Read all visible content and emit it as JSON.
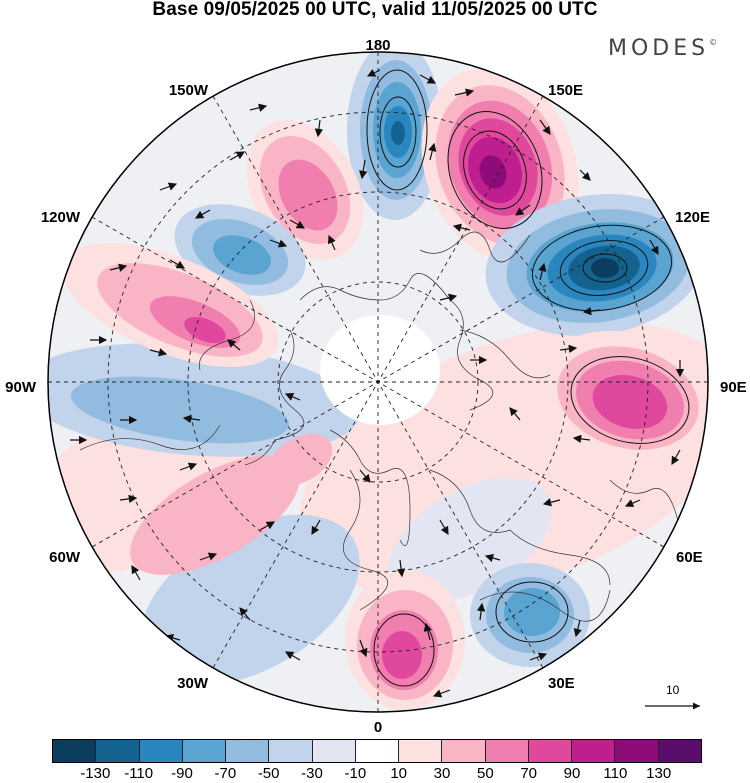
{
  "title": "Base 09/05/2025 00 UTC, valid 11/05/2025 00 UTC",
  "brand": "MODES",
  "brand_mark": "©",
  "longitude_labels": {
    "lon_180": "180",
    "lon_150e": "150E",
    "lon_120e": "120E",
    "lon_90e": "90E",
    "lon_60e": "60E",
    "lon_30e": "30E",
    "lon_0": "0",
    "lon_30w": "30W",
    "lon_60w": "60W",
    "lon_90w": "90W",
    "lon_120w": "120W",
    "lon_150w": "150W"
  },
  "reference_vector_label": "10",
  "colorbar": {
    "colors": [
      "#0b3d5e",
      "#14628f",
      "#2a86bf",
      "#5aa4d2",
      "#91bce0",
      "#c2d3ec",
      "#e4e5f2",
      "#ffffff",
      "#fde1e1",
      "#f9b5c6",
      "#f07fb0",
      "#e0489e",
      "#bf1e8e",
      "#8e0b7a",
      "#5a0d6b"
    ],
    "tick_labels": [
      "-130",
      "-110",
      "-90",
      "-70",
      "-50",
      "-30",
      "-10",
      "10",
      "30",
      "50",
      "70",
      "90",
      "110",
      "130"
    ]
  },
  "anomaly_centers": [
    {
      "label": "blue-center-north",
      "color": "#2f7bb3"
    },
    {
      "label": "magenta-center-150e",
      "color": "#c01c8c"
    },
    {
      "label": "blue-center-120e",
      "color": "#14628f"
    },
    {
      "label": "magenta-center-90e",
      "color": "#e0489e"
    },
    {
      "label": "blue-center-30e",
      "color": "#5aa4d2"
    },
    {
      "label": "magenta-center-0",
      "color": "#e0489e"
    },
    {
      "label": "pink-center-150w",
      "color": "#f07fb0"
    },
    {
      "label": "blue-center-135w",
      "color": "#5aa4d2"
    },
    {
      "label": "magenta-center-110w",
      "color": "#e0489e"
    },
    {
      "label": "pink-center-45w",
      "color": "#f9b5c6"
    },
    {
      "label": "blue-band-80w",
      "color": "#91bce0"
    }
  ]
}
